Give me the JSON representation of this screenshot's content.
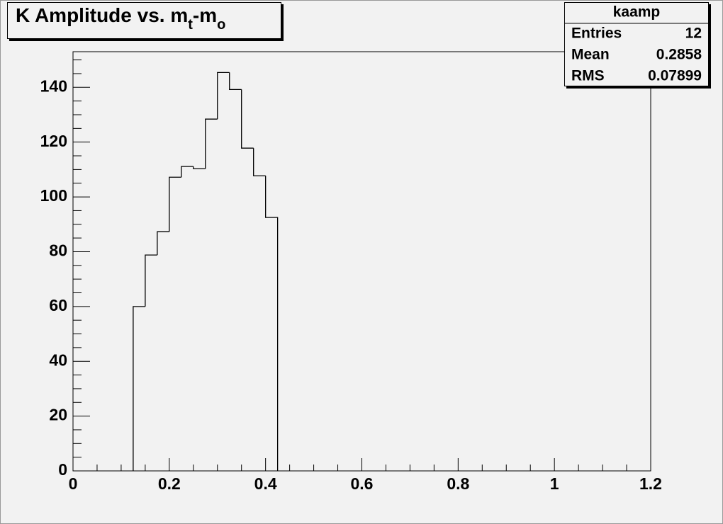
{
  "chart_data": {
    "type": "histogram",
    "title_parts": [
      "K Amplitude vs. m",
      "t",
      "-m",
      "o"
    ],
    "bins": [
      0.125,
      0.15,
      0.175,
      0.2,
      0.225,
      0.25,
      0.275,
      0.3,
      0.325,
      0.35,
      0.375,
      0.4,
      0.425
    ],
    "values": [
      60,
      78.8,
      87.3,
      107.2,
      111.1,
      110.3,
      128.4,
      145.4,
      139.2,
      117.8,
      107.7,
      92.5
    ],
    "color": "#000000",
    "xlim": [
      0,
      1.2
    ],
    "xticks": [
      0,
      0.2,
      0.4,
      0.6,
      0.8,
      1,
      1.2
    ],
    "xminorticks": [
      0.05,
      0.1,
      0.15,
      0.25,
      0.3,
      0.35,
      0.45,
      0.5,
      0.55,
      0.65,
      0.7,
      0.75,
      0.85,
      0.9,
      0.95,
      1.05,
      1.1,
      1.15
    ],
    "ylim": [
      0,
      153
    ],
    "yticks": [
      0,
      20,
      40,
      60,
      80,
      100,
      120,
      140
    ],
    "yminorticks": [
      5,
      10,
      15,
      25,
      30,
      35,
      45,
      50,
      55,
      65,
      70,
      75,
      85,
      90,
      95,
      105,
      110,
      115,
      125,
      130,
      135,
      145,
      150
    ],
    "stats": {
      "title": "kaamp",
      "rows": [
        [
          "Entries",
          "12"
        ],
        [
          "Mean",
          "0.2858"
        ],
        [
          "RMS",
          "0.07899"
        ]
      ]
    }
  }
}
